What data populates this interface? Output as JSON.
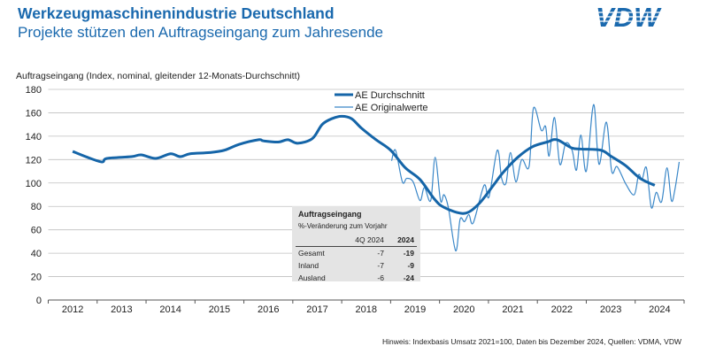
{
  "header": {
    "title": "Werkzeugmaschinenindustrie Deutschland",
    "subtitle": "Projekte stützen den Auftragseingang zum Jahresende",
    "logo_text": "VDW"
  },
  "colors": {
    "title": "#1a69ae",
    "average": "#1565a8",
    "original": "#3a87c8",
    "grid": "#bfbfbf",
    "inset_bg": "#e4e4e4"
  },
  "chart_data": {
    "type": "line",
    "ylabel": "Auftragseingang (Index, nominal, gleitender 12-Monats-Durchschnitt)",
    "ylim": [
      0,
      180
    ],
    "yticks": [
      0,
      20,
      40,
      60,
      80,
      100,
      120,
      140,
      160,
      180
    ],
    "xlim": [
      2012,
      2025
    ],
    "xticks": [
      "2012",
      "2013",
      "2014",
      "2015",
      "2016",
      "2017",
      "2018",
      "2019",
      "2020",
      "2021",
      "2022",
      "2023",
      "2024"
    ],
    "grid": "horizontal",
    "legend": "top-center",
    "series": [
      {
        "name": "AE Durchschnitt",
        "points": [
          [
            2012.5,
            127
          ],
          [
            2012.8,
            122
          ],
          [
            2013.1,
            118
          ],
          [
            2013.2,
            121
          ],
          [
            2013.7,
            122.5
          ],
          [
            2013.9,
            124
          ],
          [
            2014.2,
            121
          ],
          [
            2014.5,
            125
          ],
          [
            2014.7,
            122.5
          ],
          [
            2014.9,
            125
          ],
          [
            2015.3,
            126
          ],
          [
            2015.6,
            128
          ],
          [
            2015.9,
            133
          ],
          [
            2016.3,
            137
          ],
          [
            2016.4,
            136
          ],
          [
            2016.7,
            135
          ],
          [
            2016.9,
            137
          ],
          [
            2017.1,
            134
          ],
          [
            2017.4,
            138
          ],
          [
            2017.6,
            150
          ],
          [
            2017.8,
            155
          ],
          [
            2018.0,
            157
          ],
          [
            2018.2,
            155
          ],
          [
            2018.4,
            147
          ],
          [
            2018.7,
            137
          ],
          [
            2019.0,
            128
          ],
          [
            2019.3,
            113
          ],
          [
            2019.6,
            103
          ],
          [
            2019.9,
            86
          ],
          [
            2020.1,
            79
          ],
          [
            2020.5,
            74
          ],
          [
            2020.8,
            82
          ],
          [
            2021.1,
            98
          ],
          [
            2021.3,
            109
          ],
          [
            2021.6,
            122
          ],
          [
            2021.9,
            131
          ],
          [
            2022.2,
            135
          ],
          [
            2022.4,
            137
          ],
          [
            2022.7,
            130
          ],
          [
            2022.9,
            129
          ],
          [
            2023.3,
            128
          ],
          [
            2023.5,
            123
          ],
          [
            2023.8,
            115
          ],
          [
            2024.1,
            104
          ],
          [
            2024.4,
            98
          ]
        ]
      },
      {
        "name": "AE Originalwerte",
        "points": [
          [
            2019.02,
            119
          ],
          [
            2019.1,
            128
          ],
          [
            2019.24,
            101
          ],
          [
            2019.33,
            104
          ],
          [
            2019.46,
            101
          ],
          [
            2019.6,
            85
          ],
          [
            2019.69,
            96
          ],
          [
            2019.82,
            85
          ],
          [
            2019.91,
            122
          ],
          [
            2020.02,
            85
          ],
          [
            2020.09,
            90
          ],
          [
            2020.18,
            79
          ],
          [
            2020.33,
            42
          ],
          [
            2020.42,
            69
          ],
          [
            2020.51,
            67
          ],
          [
            2020.6,
            73
          ],
          [
            2020.69,
            66
          ],
          [
            2020.91,
            98
          ],
          [
            2021.01,
            88
          ],
          [
            2021.18,
            128
          ],
          [
            2021.27,
            104
          ],
          [
            2021.36,
            100
          ],
          [
            2021.45,
            126
          ],
          [
            2021.56,
            101
          ],
          [
            2021.68,
            120
          ],
          [
            2021.83,
            114
          ],
          [
            2021.92,
            164
          ],
          [
            2022.08,
            145
          ],
          [
            2022.17,
            148
          ],
          [
            2022.24,
            123
          ],
          [
            2022.35,
            156
          ],
          [
            2022.46,
            116
          ],
          [
            2022.58,
            134
          ],
          [
            2022.71,
            128
          ],
          [
            2022.8,
            111
          ],
          [
            2022.89,
            141
          ],
          [
            2023.0,
            110
          ],
          [
            2023.15,
            167
          ],
          [
            2023.26,
            116
          ],
          [
            2023.41,
            152
          ],
          [
            2023.52,
            110
          ],
          [
            2023.63,
            114
          ],
          [
            2023.81,
            99
          ],
          [
            2023.98,
            90
          ],
          [
            2024.07,
            107
          ],
          [
            2024.14,
            103
          ],
          [
            2024.23,
            113
          ],
          [
            2024.33,
            79
          ],
          [
            2024.43,
            92
          ],
          [
            2024.54,
            84
          ],
          [
            2024.65,
            113
          ],
          [
            2024.74,
            85
          ],
          [
            2024.81,
            94
          ],
          [
            2024.9,
            118
          ]
        ]
      }
    ]
  },
  "inset": {
    "title": "Auftragseingang",
    "subtitle": "%-Veränderung zum Vorjahr",
    "columns": [
      "",
      "4Q 2024",
      "2024"
    ],
    "rows": [
      [
        "Gesamt",
        "-7",
        "-19"
      ],
      [
        "Inland",
        "-7",
        "-9"
      ],
      [
        "Ausland",
        "-6",
        "-24"
      ]
    ]
  },
  "footnote": "Hinweis: Indexbasis Umsatz 2021=100, Daten bis Dezember 2024, Quellen: VDMA, VDW"
}
